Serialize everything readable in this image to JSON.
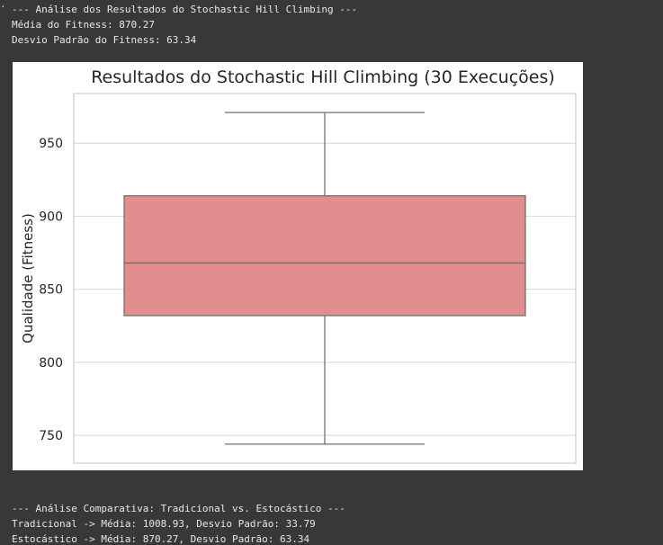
{
  "output": {
    "lines_top": [
      "--- Análise dos Resultados do Stochastic Hill Climbing ---",
      "Média do Fitness: 870.27",
      "Desvio Padrão do Fitness: 63.34"
    ],
    "lines_bottom": [
      "--- Análise Comparativa: Tradicional vs. Estocástico ---",
      "Tradicional -> Média: 1008.93, Desvio Padrão: 33.79",
      "Estocástico -> Média: 870.27, Desvio Padrão: 63.34"
    ]
  },
  "chart_data": {
    "type": "box",
    "title": "Resultados do Stochastic Hill Climbing (30 Execuções)",
    "xlabel": "",
    "ylabel": "Qualidade (Fitness)",
    "ylim": [
      731,
      984
    ],
    "yticks": [
      750,
      800,
      850,
      900,
      950
    ],
    "grid": true,
    "box": {
      "min": 744,
      "q1": 832,
      "median": 868,
      "q3": 914,
      "max": 971
    },
    "colors": {
      "box_fill": "#e38e8e",
      "line": "#707070",
      "grid": "#dcdcdc",
      "text": "#262626"
    }
  }
}
